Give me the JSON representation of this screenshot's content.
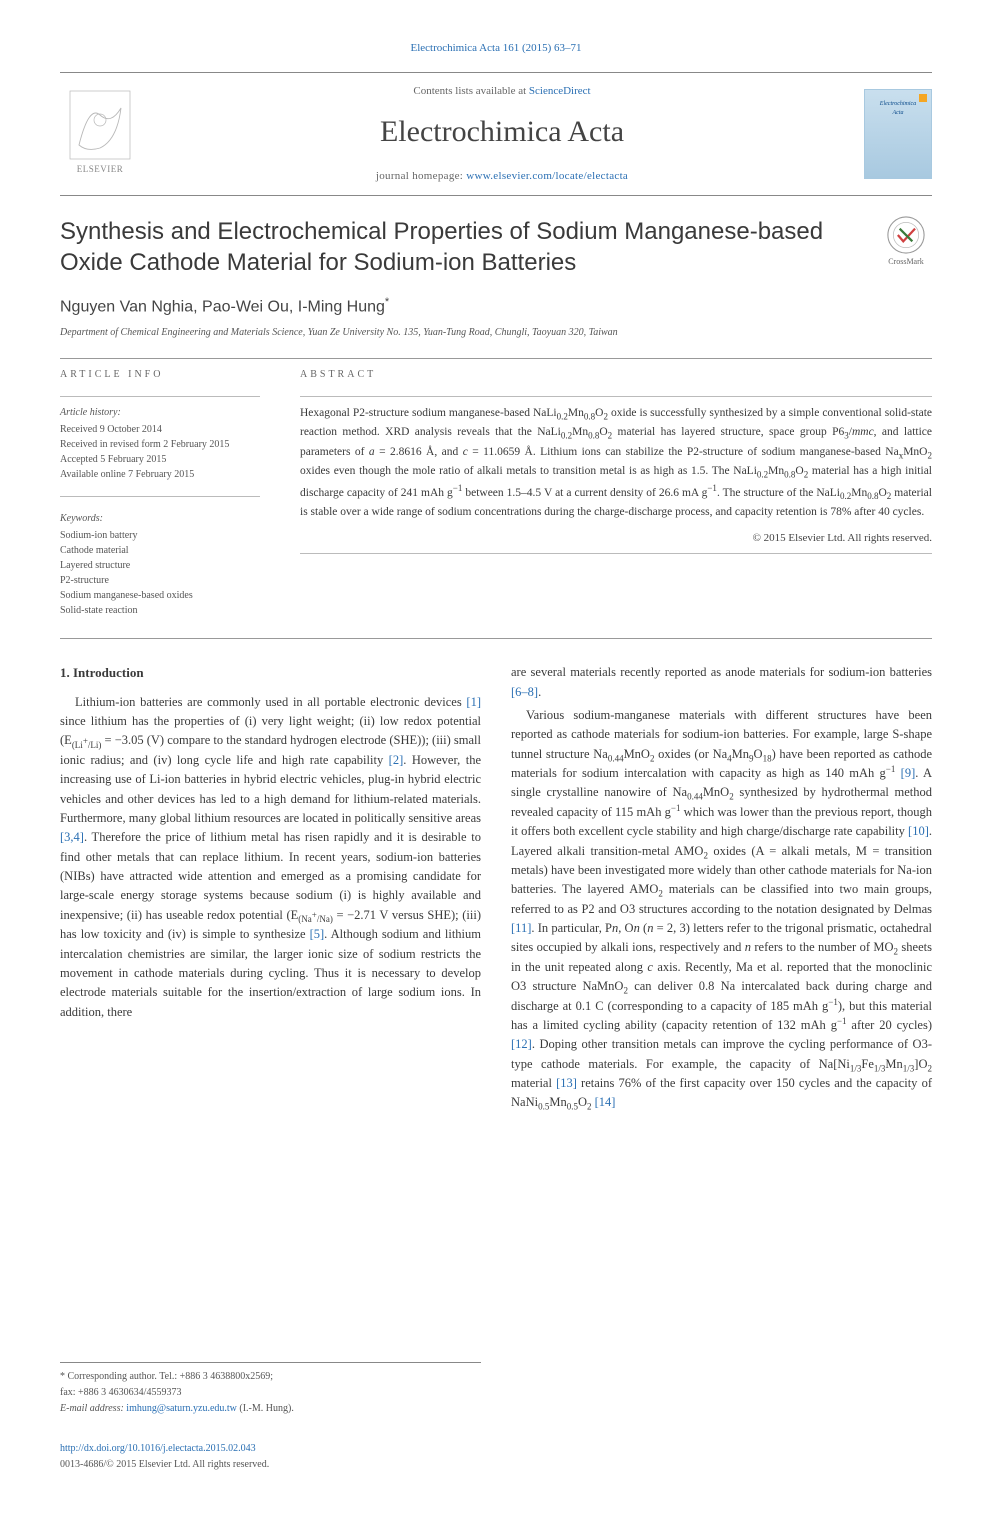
{
  "top_citation": "Electrochimica Acta 161 (2015) 63–71",
  "header": {
    "contents_pre": "Contents lists available at ",
    "contents_link": "ScienceDirect",
    "journal_name": "Electrochimica Acta",
    "homepage_pre": "journal homepage: ",
    "homepage_link": "www.elsevier.com/locate/electacta",
    "elsevier_label": "ELSEVIER",
    "cover_text": "Electrochimica\nActa"
  },
  "title": "Synthesis and Electrochemical Properties of Sodium Manganese-based Oxide Cathode Material for Sodium-ion Batteries",
  "crossmark_label": "CrossMark",
  "authors": "Nguyen Van Nghia, Pao-Wei Ou, I-Ming Hung",
  "author_sup": "*",
  "affiliation": "Department of Chemical Engineering and Materials Science, Yuan Ze University No. 135, Yuan-Tung Road, Chungli, Taoyuan 320, Taiwan",
  "article_info": {
    "label": "ARTICLE INFO",
    "history_label": "Article history:",
    "history": [
      "Received 9 October 2014",
      "Received in revised form 2 February 2015",
      "Accepted 5 February 2015",
      "Available online 7 February 2015"
    ],
    "keywords_label": "Keywords:",
    "keywords": [
      "Sodium-ion battery",
      "Cathode material",
      "Layered structure",
      "P2-structure",
      "Sodium manganese-based oxides",
      "Solid-state reaction"
    ]
  },
  "abstract": {
    "label": "ABSTRACT",
    "text_html": "Hexagonal P2-structure sodium manganese-based NaLi<sub>0.2</sub>Mn<sub>0.8</sub>O<sub>2</sub> oxide is successfully synthesized by a simple conventional solid-state reaction method. XRD analysis reveals that the NaLi<sub>0.2</sub>Mn<sub>0.8</sub>O<sub>2</sub> material has layered structure, space group P6<sub>3</sub>/<i>mmc</i>, and lattice parameters of <i>a</i> = 2.8616 Å, and <i>c</i> = 11.0659 Å. Lithium ions can stabilize the P2-structure of sodium manganese-based Na<sub>x</sub>MnO<sub>2</sub> oxides even though the mole ratio of alkali metals to transition metal is as high as 1.5. The NaLi<sub>0.2</sub>Mn<sub>0.8</sub>O<sub>2</sub> material has a high initial discharge capacity of 241 mAh g<sup>−1</sup> between 1.5–4.5 V at a current density of 26.6 mA g<sup>−1</sup>. The structure of the NaLi<sub>0.2</sub>Mn<sub>0.8</sub>O<sub>2</sub> material is stable over a wide range of sodium concentrations during the charge-discharge process, and capacity retention is 78% after 40 cycles.",
    "copyright": "© 2015 Elsevier Ltd. All rights reserved."
  },
  "section_heading": "1. Introduction",
  "body": {
    "p1_html": "Lithium-ion batteries are commonly used in all portable electronic devices <a class=\"ref\" href=\"#\">[1]</a> since lithium has the properties of (i) very light weight; (ii) low redox potential (E<sub>(Li<sup>+</sup>/Li)</sub> = −3.05 (V) compare to the standard hydrogen electrode (SHE)); (iii) small ionic radius; and (iv) long cycle life and high rate capability <a class=\"ref\" href=\"#\">[2]</a>. However, the increasing use of Li-ion batteries in hybrid electric vehicles, plug-in hybrid electric vehicles and other devices has led to a high demand for lithium-related materials. Furthermore, many global lithium resources are located in politically sensitive areas <a class=\"ref\" href=\"#\">[3,4]</a>. Therefore the price of lithium metal has risen rapidly and it is desirable to find other metals that can replace lithium. In recent years, sodium-ion batteries (NIBs) have attracted wide attention and emerged as a promising candidate for large-scale energy storage systems because sodium (i) is highly available and inexpensive; (ii) has useable redox potential (E<sub>(Na<sup>+</sup>/Na)</sub> = −2.71 V versus SHE); (iii) has low toxicity and (iv) is simple to synthesize <a class=\"ref\" href=\"#\">[5]</a>. Although sodium and lithium intercalation chemistries are similar, the larger ionic size of sodium restricts the movement in cathode materials during cycling. Thus it is necessary to develop electrode materials suitable for the insertion/extraction of large sodium ions. In addition, there",
    "p2_html": "are several materials recently reported as anode materials for sodium-ion batteries <a class=\"ref\" href=\"#\">[6–8]</a>.",
    "p3_html": "Various sodium-manganese materials with different structures have been reported as cathode materials for sodium-ion batteries. For example, large S-shape tunnel structure Na<sub>0.44</sub>MnO<sub>2</sub> oxides (or Na<sub>4</sub>Mn<sub>9</sub>O<sub>18</sub>) have been reported as cathode materials for sodium intercalation with capacity as high as 140 mAh g<sup>−1</sup> <a class=\"ref\" href=\"#\">[9]</a>. A single crystalline nanowire of Na<sub>0.44</sub>MnO<sub>2</sub> synthesized by hydrothermal method revealed capacity of 115 mAh g<sup>−1</sup> which was lower than the previous report, though it offers both excellent cycle stability and high charge/discharge rate capability <a class=\"ref\" href=\"#\">[10]</a>. Layered alkali transition-metal AMO<sub>2</sub> oxides (A = alkali metals, M = transition metals) have been investigated more widely than other cathode materials for Na-ion batteries. The layered AMO<sub>2</sub> materials can be classified into two main groups, referred to as P2 and O3 structures according to the notation designated by Delmas <a class=\"ref\" href=\"#\">[11]</a>. In particular, P<i>n</i>, O<i>n</i> (<i>n</i> = 2, 3) letters refer to the trigonal prismatic, octahedral sites occupied by alkali ions, respectively and <i>n</i> refers to the number of MO<sub>2</sub> sheets in the unit repeated along <i>c</i> axis. Recently, Ma et al. reported that the monoclinic O3 structure NaMnO<sub>2</sub> can deliver 0.8 Na intercalated back during charge and discharge at 0.1 C (corresponding to a capacity of 185 mAh g<sup>−1</sup>), but this material has a limited cycling ability (capacity retention of 132 mAh g<sup>−1</sup> after 20 cycles) <a class=\"ref\" href=\"#\">[12]</a>. Doping other transition metals can improve the cycling performance of O3-type cathode materials. For example, the capacity of Na[Ni<sub>1/3</sub>Fe<sub>1/3</sub>Mn<sub>1/3</sub>]O<sub>2</sub> material <a class=\"ref\" href=\"#\">[13]</a> retains 76% of the first capacity over 150 cycles and the capacity of NaNi<sub>0.5</sub>Mn<sub>0.5</sub>O<sub>2</sub> <a class=\"ref\" href=\"#\">[14]</a>"
  },
  "footnote": {
    "corresponding": "* Corresponding author. Tel.: +886 3 4638800x2569;",
    "fax": "fax: +886 3 4630634/4559373",
    "email_label": "E-mail address: ",
    "email": "imhung@saturn.yzu.edu.tw",
    "email_name": " (I.-M. Hung)."
  },
  "doi": {
    "link": "http://dx.doi.org/10.1016/j.electacta.2015.02.043",
    "issn": "0013-4686/© 2015 Elsevier Ltd. All rights reserved."
  },
  "colors": {
    "link": "#2a6fb3",
    "text": "#3a3a3a",
    "muted": "#666666",
    "rule": "#888888"
  }
}
